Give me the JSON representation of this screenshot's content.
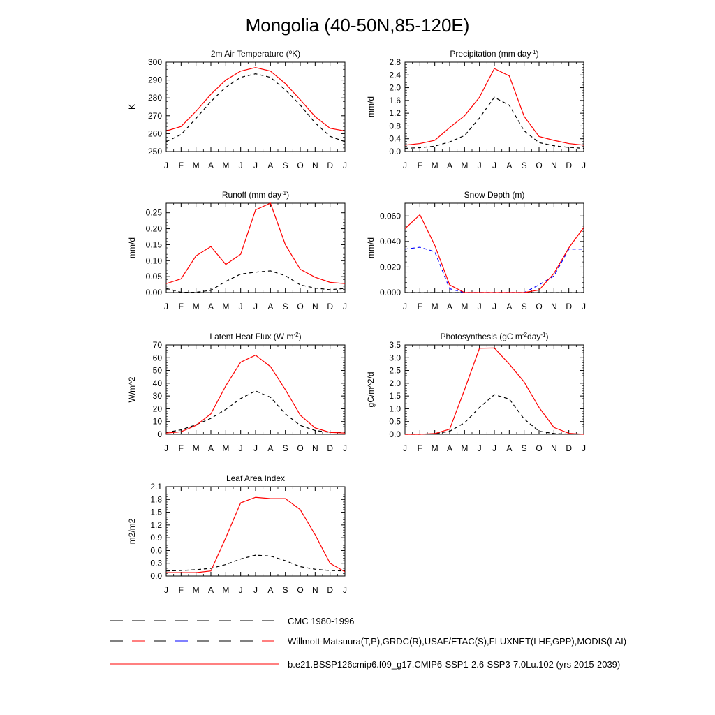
{
  "figure": {
    "title": "Mongolia (40-50N,85-120E)"
  },
  "legend": [
    {
      "label": "CMC 1980-1996",
      "color": "#000000",
      "dash": "dash",
      "colors": [
        "#000000"
      ]
    },
    {
      "label": "Willmott-Matsuura(T,P),GRDC(R),USAF/ETAC(S),FLUXNET(LHF,GPP),MODIS(LAI)",
      "color": "#000000",
      "dash": "dash",
      "colors": [
        "#000000",
        "#ff0000",
        "#000000",
        "#0000ff",
        "#000000",
        "#000000"
      ]
    },
    {
      "label": "b.e21.BSSP126cmip6.f09_g17.CMIP6-SSP1-2.6-SSP3-7.0Lu.102 (yrs 2015-2039)",
      "color": "#ff0000",
      "dash": "solid",
      "colors": [
        "#ff0000"
      ]
    }
  ],
  "chart_data": [
    {
      "type": "line",
      "title": "2m Air Temperature (",
      "title_sup": "o",
      "title_post": "K)",
      "ylabel": "K",
      "categories": [
        "J",
        "F",
        "M",
        "A",
        "M",
        "J",
        "J",
        "A",
        "S",
        "O",
        "N",
        "D",
        "J"
      ],
      "ylim": [
        250,
        300
      ],
      "yticks": [
        250,
        260,
        270,
        280,
        290,
        300
      ],
      "yticklabels": [
        "250",
        "260",
        "270",
        "280",
        "290",
        "300"
      ],
      "series": [
        {
          "color": "#ff0000",
          "dash": "solid",
          "values": [
            261.5,
            264,
            272.5,
            282,
            290,
            295,
            297,
            295,
            288,
            279,
            269.5,
            263,
            261.5
          ]
        },
        {
          "color": "#000000",
          "dash": "dash",
          "values": [
            255.5,
            259.5,
            268.5,
            278,
            286,
            291.5,
            293.5,
            291.5,
            284.5,
            276,
            266,
            258.5,
            255.5
          ]
        }
      ]
    },
    {
      "type": "line",
      "title": "Precipitation (mm day",
      "title_sup": "-1",
      "title_post": ")",
      "ylabel": "mm/d",
      "categories": [
        "J",
        "F",
        "M",
        "A",
        "M",
        "J",
        "J",
        "A",
        "S",
        "O",
        "N",
        "D",
        "J"
      ],
      "ylim": [
        0,
        2.8
      ],
      "yticks": [
        0,
        0.4,
        0.8,
        1.2,
        1.6,
        2.0,
        2.4,
        2.8
      ],
      "yticklabels": [
        "0.0",
        "0.4",
        "0.8",
        "1.2",
        "1.6",
        "2.0",
        "2.4",
        "2.8"
      ],
      "series": [
        {
          "color": "#ff0000",
          "dash": "solid",
          "values": [
            0.2,
            0.25,
            0.35,
            0.75,
            1.12,
            1.7,
            2.6,
            2.37,
            1.1,
            0.47,
            0.35,
            0.25,
            0.2
          ]
        },
        {
          "color": "#000000",
          "dash": "dash",
          "values": [
            0.1,
            0.12,
            0.17,
            0.3,
            0.5,
            1.05,
            1.7,
            1.45,
            0.65,
            0.28,
            0.18,
            0.13,
            0.1
          ]
        }
      ]
    },
    {
      "type": "line",
      "title": "Runoff (mm day",
      "title_sup": "-1",
      "title_post": ")",
      "ylabel": "mm/d",
      "categories": [
        "J",
        "F",
        "M",
        "A",
        "M",
        "J",
        "J",
        "A",
        "S",
        "O",
        "N",
        "D",
        "J"
      ],
      "ylim": [
        0,
        0.28
      ],
      "yticks": [
        0,
        0.05,
        0.1,
        0.15,
        0.2,
        0.25
      ],
      "yticklabels": [
        "0.00",
        "0.05",
        "0.10",
        "0.15",
        "0.20",
        "0.25"
      ],
      "series": [
        {
          "color": "#ff0000",
          "dash": "solid",
          "values": [
            0.028,
            0.043,
            0.115,
            0.144,
            0.088,
            0.12,
            0.259,
            0.28,
            0.15,
            0.073,
            0.048,
            0.032,
            0.028
          ]
        },
        {
          "color": "#000000",
          "dash": "dash",
          "values": [
            0.013,
            0.001,
            0.001,
            0.007,
            0.035,
            0.058,
            0.064,
            0.068,
            0.053,
            0.024,
            0.014,
            0.009,
            0.013
          ]
        }
      ]
    },
    {
      "type": "line",
      "title": "Snow Depth (m)",
      "title_sup": "",
      "title_post": "",
      "ylabel": "mm/d",
      "categories": [
        "J",
        "F",
        "M",
        "A",
        "M",
        "J",
        "J",
        "A",
        "S",
        "O",
        "N",
        "D",
        "J"
      ],
      "ylim": [
        0,
        0.07
      ],
      "yticks": [
        0,
        0.02,
        0.04,
        0.06
      ],
      "yticklabels": [
        "0.000",
        "0.020",
        "0.040",
        "0.060"
      ],
      "series": [
        {
          "color": "#ff0000",
          "dash": "solid",
          "values": [
            0.05,
            0.061,
            0.037,
            0.006,
            0.0,
            0.0,
            0.0,
            0.0,
            0.0,
            0.002,
            0.015,
            0.035,
            0.051
          ]
        },
        {
          "color": "#0000ff",
          "dash": "dash",
          "values": [
            0.034,
            0.0355,
            0.032,
            0.003,
            0.0,
            0.0,
            0.0,
            0.0,
            0.0,
            0.006,
            0.013,
            0.034,
            0.034
          ]
        },
        {
          "color": "#000000",
          "dash": "dash",
          "values": [
            0.0,
            0.0,
            0.0,
            0.0,
            0.0,
            0.0,
            0.0,
            0.0,
            0.0,
            0.0,
            0.0,
            0.0,
            0.0
          ]
        }
      ]
    },
    {
      "type": "line",
      "title": "Latent Heat Flux (W m",
      "title_sup": "-2",
      "title_post": ")",
      "ylabel": "W/m^2",
      "categories": [
        "J",
        "F",
        "M",
        "A",
        "M",
        "J",
        "J",
        "A",
        "S",
        "O",
        "N",
        "D",
        "J"
      ],
      "ylim": [
        0,
        70
      ],
      "yticks": [
        0,
        10,
        20,
        30,
        40,
        50,
        60,
        70
      ],
      "yticklabels": [
        "0",
        "10",
        "20",
        "30",
        "40",
        "50",
        "60",
        "70"
      ],
      "series": [
        {
          "color": "#ff0000",
          "dash": "solid",
          "values": [
            1,
            2,
            7,
            16,
            38,
            56.5,
            62,
            53,
            35,
            15,
            5,
            1.5,
            1
          ]
        },
        {
          "color": "#000000",
          "dash": "dash",
          "values": [
            1.5,
            3.5,
            7.5,
            12.5,
            19.5,
            28,
            34,
            29,
            16,
            7,
            3,
            1.5,
            1.5
          ]
        }
      ]
    },
    {
      "type": "line",
      "title": "Photosynthesis (gC m",
      "title_sup": "-2",
      "title_post": "day",
      "title_sup2": "-1",
      "title_post2": ")",
      "ylabel": "gC/m^2/d",
      "categories": [
        "J",
        "F",
        "M",
        "A",
        "M",
        "J",
        "J",
        "A",
        "S",
        "O",
        "N",
        "D",
        "J"
      ],
      "ylim": [
        0,
        3.5
      ],
      "yticks": [
        0,
        0.5,
        1.0,
        1.5,
        2.0,
        2.5,
        3.0,
        3.5
      ],
      "yticklabels": [
        "0.0",
        "0.5",
        "1.0",
        "1.5",
        "2.0",
        "2.5",
        "3.0",
        "3.5"
      ],
      "series": [
        {
          "color": "#ff0000",
          "dash": "solid",
          "values": [
            0.0,
            0.0,
            0.03,
            0.2,
            1.75,
            3.37,
            3.38,
            2.75,
            2.05,
            1.05,
            0.27,
            0.04,
            0.0
          ]
        },
        {
          "color": "#000000",
          "dash": "dash",
          "values": [
            0.0,
            0.0,
            0.02,
            0.12,
            0.45,
            1.05,
            1.55,
            1.38,
            0.6,
            0.12,
            0.03,
            0.01,
            0.0
          ]
        }
      ]
    },
    {
      "type": "line",
      "title": "Leaf Area Index",
      "title_sup": "",
      "title_post": "",
      "ylabel": "m2/m2",
      "categories": [
        "J",
        "F",
        "M",
        "A",
        "M",
        "J",
        "J",
        "A",
        "S",
        "O",
        "N",
        "D",
        "J"
      ],
      "ylim": [
        0,
        2.1
      ],
      "yticks": [
        0,
        0.3,
        0.6,
        0.9,
        1.2,
        1.5,
        1.8,
        2.1
      ],
      "yticklabels": [
        "0.0",
        "0.3",
        "0.6",
        "0.9",
        "1.2",
        "1.5",
        "1.8",
        "2.1"
      ],
      "series": [
        {
          "color": "#ff0000",
          "dash": "solid",
          "values": [
            0.08,
            0.08,
            0.08,
            0.12,
            0.9,
            1.72,
            1.85,
            1.82,
            1.82,
            1.56,
            0.97,
            0.3,
            0.1
          ]
        },
        {
          "color": "#000000",
          "dash": "dash",
          "values": [
            0.12,
            0.13,
            0.15,
            0.18,
            0.27,
            0.4,
            0.49,
            0.47,
            0.36,
            0.22,
            0.16,
            0.13,
            0.12
          ]
        }
      ]
    }
  ]
}
